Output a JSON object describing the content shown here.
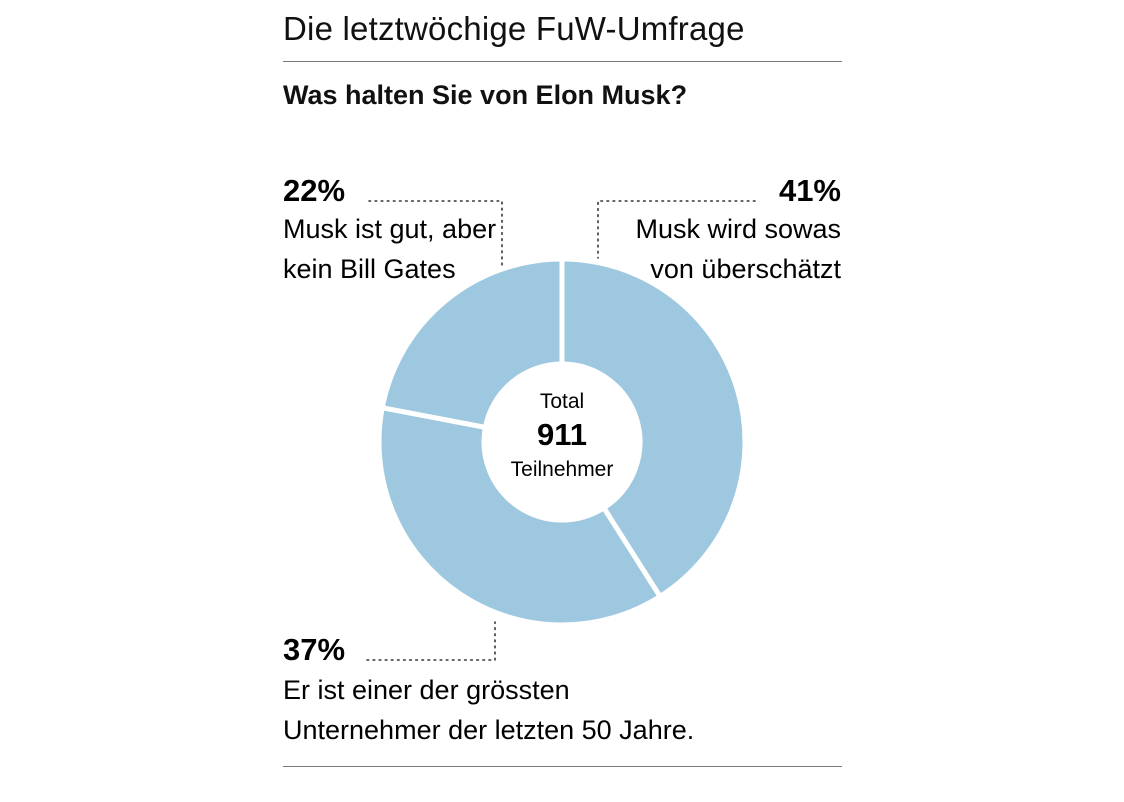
{
  "header": {
    "kicker": "Die letztwöchige FuW-Umfrage",
    "question": "Was halten Sie von Elon Musk?"
  },
  "chart_data": {
    "type": "pie",
    "donut": true,
    "title": "Was halten Sie von Elon Musk?",
    "color": "#9dc8df",
    "categories": [
      "Musk wird sowas von überschätzt",
      "Er ist einer der grössten Unternehmer der letzten 50 Jahre.",
      "Musk ist gut, aber kein Bill Gates"
    ],
    "values": [
      41,
      37,
      22
    ],
    "unit": "%",
    "center": {
      "top": "Total",
      "value": "911",
      "bottom": "Teilnehmer"
    },
    "labels": [
      {
        "pct": "41%",
        "lines": [
          "Musk wird sowas",
          "von überschätzt"
        ]
      },
      {
        "pct": "37%",
        "lines": [
          "Er ist einer der grössten",
          "Unternehmer der letzten 50 Jahre."
        ]
      },
      {
        "pct": "22%",
        "lines": [
          "Musk ist gut, aber",
          "kein Bill Gates"
        ]
      }
    ]
  }
}
